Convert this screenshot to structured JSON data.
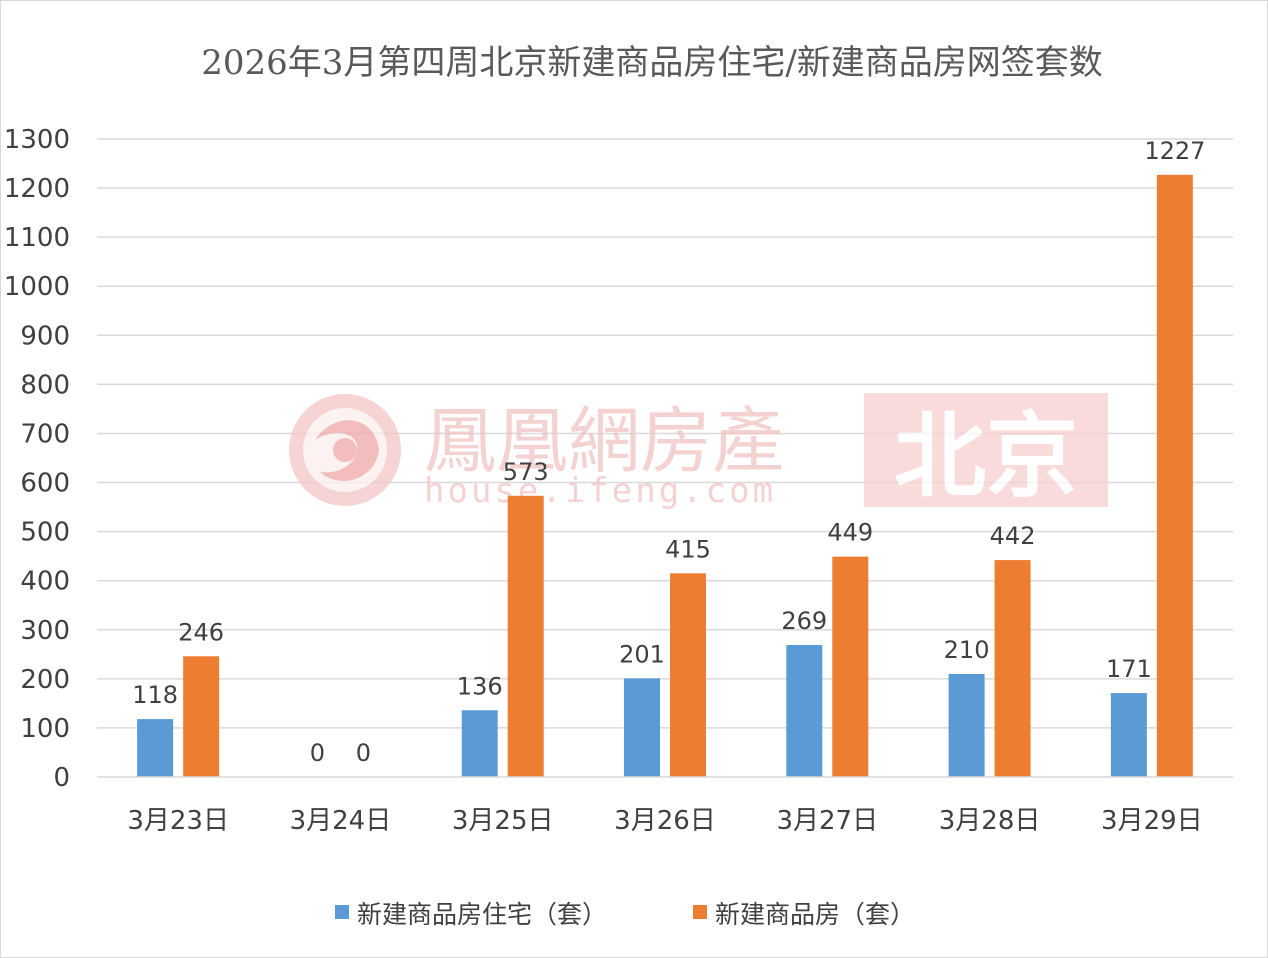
{
  "chart_data": {
    "type": "bar",
    "title": "2026年3月第四周北京新建商品房住宅/新建商品房网签套数",
    "categories": [
      "3月23日",
      "3月24日",
      "3月25日",
      "3月26日",
      "3月27日",
      "3月28日",
      "3月29日"
    ],
    "series": [
      {
        "name": "新建商品房住宅（套）",
        "values": [
          118,
          0,
          136,
          201,
          269,
          210,
          171
        ],
        "color": "#5b9bd5"
      },
      {
        "name": "新建商品房（套）",
        "values": [
          246,
          0,
          573,
          415,
          449,
          442,
          1227
        ],
        "color": "#ed7d31"
      }
    ],
    "ylim": [
      0,
      1300
    ],
    "ytick_step": 100,
    "grid": true,
    "legend_position": "bottom",
    "xlabel": "",
    "ylabel": ""
  },
  "watermark": {
    "logo_text": "鳳凰網房產",
    "url_text": "house.ifeng.com",
    "city_text": "北京",
    "color": "#f2b8b8"
  }
}
